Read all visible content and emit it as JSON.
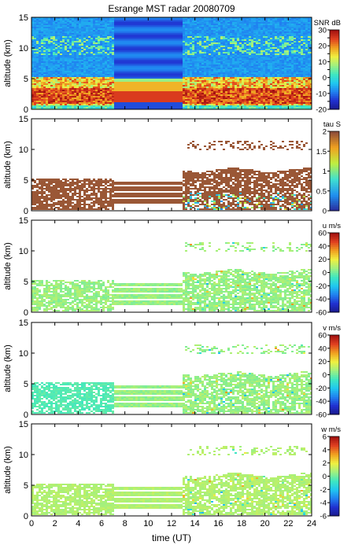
{
  "figure": {
    "title": "Esrange MST radar 20080709",
    "xlabel": "time (UT)"
  },
  "colors": {
    "colormap": [
      "#1a1a8a",
      "#2030d0",
      "#2080f0",
      "#20c8f0",
      "#40e8c0",
      "#a0f080",
      "#f0f040",
      "#f0a020",
      "#e04020",
      "#a01010"
    ],
    "tau_colormap": [
      "#2a2a9a",
      "#2090f0",
      "#40e0d0",
      "#c0f040",
      "#f0a020",
      "#8b4a3a"
    ],
    "bg_noise": "#1838d8",
    "tau_main": "#7a4035"
  },
  "chart_data": [
    {
      "type": "heatmap",
      "ylabel": "altitude (km)",
      "colorbar_label": "SNR dB",
      "xlim": [
        0,
        24
      ],
      "ylim": [
        0,
        15
      ],
      "x_ticks": [
        0,
        2,
        4,
        6,
        8,
        10,
        12,
        14,
        16,
        18,
        20,
        22,
        24
      ],
      "y_ticks": [
        0,
        5,
        10,
        15
      ],
      "clim": [
        -20,
        30
      ],
      "colorbar_ticks": [
        -20,
        -15,
        -10,
        -5,
        0,
        5,
        10,
        15,
        20,
        25,
        30
      ],
      "colorbar_tick_labels": [
        "-20",
        "",
        "-10",
        "",
        "0",
        "",
        "10",
        "",
        "20",
        "",
        "30"
      ],
      "no_data_gap_ut": [
        7.0,
        12.8
      ]
    },
    {
      "type": "heatmap",
      "ylabel": "altitude (km)",
      "colorbar_label": "tau S",
      "xlim": [
        0,
        24
      ],
      "ylim": [
        0,
        15
      ],
      "x_ticks": [
        0,
        2,
        4,
        6,
        8,
        10,
        12,
        14,
        16,
        18,
        20,
        22,
        24
      ],
      "y_ticks": [
        0,
        5,
        10,
        15
      ],
      "clim": [
        0,
        2
      ],
      "colorbar_ticks": [
        0,
        0.5,
        1,
        1.5,
        2
      ],
      "colorbar_tick_labels": [
        "0",
        "0.5",
        "1",
        "1.5",
        "2"
      ]
    },
    {
      "type": "heatmap",
      "ylabel": "altitude (km)",
      "colorbar_label": "u m/s",
      "xlim": [
        0,
        24
      ],
      "ylim": [
        0,
        15
      ],
      "x_ticks": [
        0,
        2,
        4,
        6,
        8,
        10,
        12,
        14,
        16,
        18,
        20,
        22,
        24
      ],
      "y_ticks": [
        0,
        5,
        10,
        15
      ],
      "clim": [
        -60,
        60
      ],
      "colorbar_ticks": [
        -60,
        -40,
        -20,
        0,
        20,
        40,
        60
      ],
      "colorbar_tick_labels": [
        "-60",
        "-40",
        "-20",
        "0",
        "20",
        "40",
        "60"
      ]
    },
    {
      "type": "heatmap",
      "ylabel": "altitude (km)",
      "colorbar_label": "v m/s",
      "xlim": [
        0,
        24
      ],
      "ylim": [
        0,
        15
      ],
      "x_ticks": [
        0,
        2,
        4,
        6,
        8,
        10,
        12,
        14,
        16,
        18,
        20,
        22,
        24
      ],
      "y_ticks": [
        0,
        5,
        10,
        15
      ],
      "clim": [
        -60,
        60
      ],
      "colorbar_ticks": [
        -60,
        -40,
        -20,
        0,
        20,
        40,
        60
      ],
      "colorbar_tick_labels": [
        "-60",
        "-40",
        "-20",
        "0",
        "20",
        "40",
        "60"
      ]
    },
    {
      "type": "heatmap",
      "ylabel": "altitude (km)",
      "colorbar_label": "w m/s",
      "xlim": [
        0,
        24
      ],
      "ylim": [
        0,
        15
      ],
      "x_ticks": [
        0,
        2,
        4,
        6,
        8,
        10,
        12,
        14,
        16,
        18,
        20,
        22,
        24
      ],
      "x_tick_labels": [
        "0",
        "2",
        "4",
        "6",
        "8",
        "10",
        "12",
        "14",
        "16",
        "18",
        "20",
        "22",
        "24"
      ],
      "y_ticks": [
        0,
        5,
        10,
        15
      ],
      "clim": [
        -6,
        6
      ],
      "colorbar_ticks": [
        -6,
        -4,
        -2,
        0,
        2,
        4,
        6
      ],
      "colorbar_tick_labels": [
        "-6",
        "-4",
        "-2",
        "0",
        "2",
        "4",
        "6"
      ]
    }
  ]
}
